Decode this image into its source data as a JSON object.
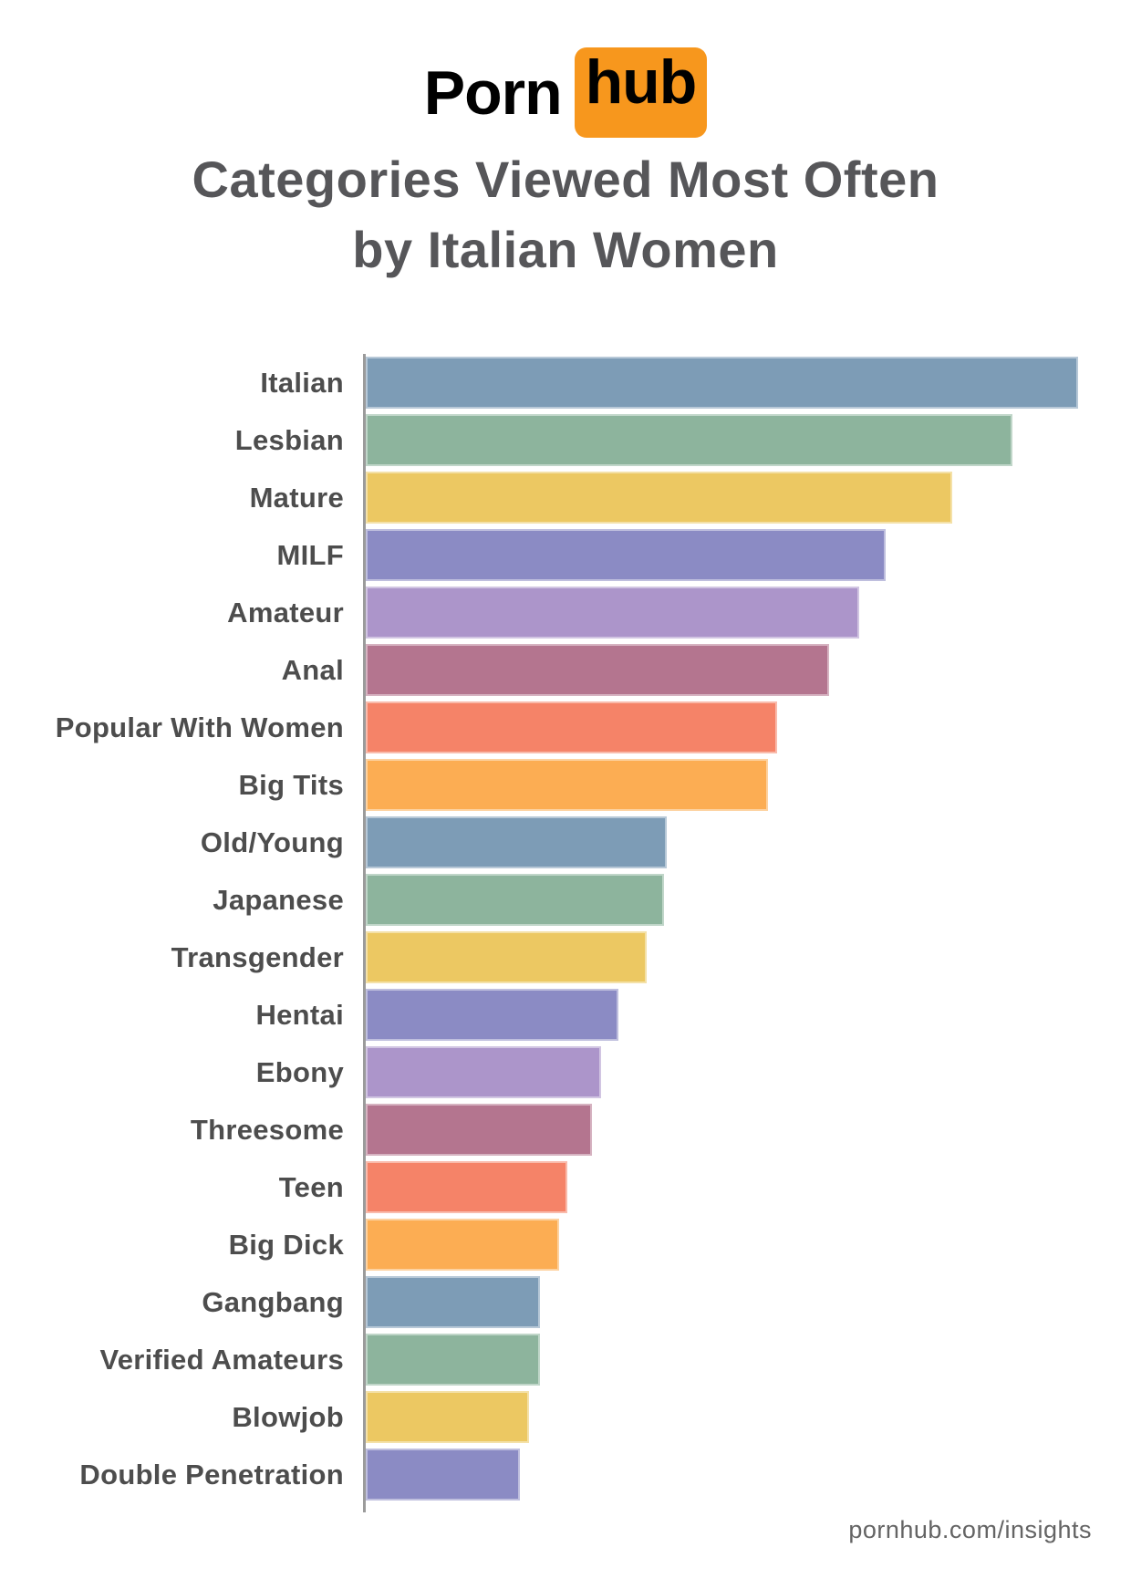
{
  "logo": {
    "porn": "Porn",
    "hub": "hub",
    "orange": "#f7971d"
  },
  "title": {
    "line1": "Categories Viewed Most Often",
    "line2": "by Italian Women",
    "text_color": "#565659"
  },
  "footer": {
    "text": "pornhub.com/insights"
  },
  "chart_data": {
    "type": "bar",
    "orientation": "horizontal",
    "title": "Categories Viewed Most Often by Italian Women",
    "xlabel": "",
    "ylabel": "",
    "gridlines": false,
    "value_labels_shown": false,
    "axis_note": "single gray vertical baseline on the left; no ticks or numeric axis shown",
    "xlim": [
      0,
      100
    ],
    "note": "no numeric values printed on chart; values below are bar lengths measured relative to the longest bar (Italian = 100)",
    "categories": [
      "Italian",
      "Lesbian",
      "Mature",
      "MILF",
      "Amateur",
      "Anal",
      "Popular With Women",
      "Big Tits",
      "Old/Young",
      "Japanese",
      "Transgender",
      "Hentai",
      "Ebony",
      "Threesome",
      "Teen",
      "Big Dick",
      "Gangbang",
      "Verified Amateurs",
      "Blowjob",
      "Double Penetration"
    ],
    "values_relative_pct": [
      100,
      90.8,
      82.3,
      73.0,
      69.3,
      65.0,
      57.7,
      56.5,
      42.3,
      41.9,
      39.4,
      35.5,
      33.0,
      31.8,
      28.3,
      27.1,
      24.5,
      24.5,
      22.9,
      21.6
    ],
    "bar_colors": [
      "#7d9cb6",
      "#8db49d",
      "#ecc862",
      "#8b8bc4",
      "#ac95ca",
      "#b4758f",
      "#f58368",
      "#fcad53",
      "#7d9cb6",
      "#8db49d",
      "#ecc862",
      "#8b8bc4",
      "#ac95ca",
      "#b4758f",
      "#f58368",
      "#fcad53",
      "#7d9cb6",
      "#8db49d",
      "#ecc862",
      "#8b8bc4"
    ],
    "palette_cycle": [
      "#7d9cb6",
      "#8db49d",
      "#ecc862",
      "#8b8bc4",
      "#ac95ca",
      "#b4758f",
      "#f58368",
      "#fcad53"
    ],
    "axis_color": "#9b9b9b"
  }
}
